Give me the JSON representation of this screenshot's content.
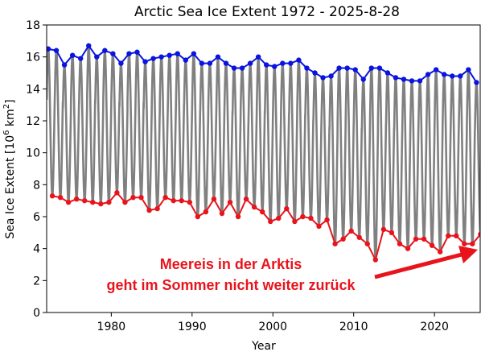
{
  "chart_data": {
    "type": "line",
    "title": "Arctic Sea Ice Extent 1972 - 2025-8-28",
    "xlabel": "Year",
    "ylabel_main": "Sea Ice Extent [10",
    "ylabel_sup1": "6",
    "ylabel_mid": " km",
    "ylabel_sup2": "2",
    "ylabel_end": "]",
    "xlim": [
      1972,
      2025.66
    ],
    "ylim": [
      0,
      18
    ],
    "xticks": [
      1980,
      1990,
      2000,
      2010,
      2020
    ],
    "yticks": [
      0,
      2,
      4,
      6,
      8,
      10,
      12,
      14,
      16,
      18
    ],
    "grid": false,
    "annotation": {
      "text_line1": "Meereis in der Arktis",
      "text_line2": "geht im Sommer nicht weiter zurück",
      "color": "#e8141c"
    },
    "colors": {
      "daily": "#808080",
      "max": "#0a14e0",
      "min": "#e8141c"
    },
    "series": [
      {
        "role": "annual-maximum",
        "x": [
          1972,
          1973,
          1974,
          1975,
          1976,
          1977,
          1978,
          1979,
          1980,
          1981,
          1982,
          1983,
          1984,
          1985,
          1986,
          1987,
          1988,
          1989,
          1990,
          1991,
          1992,
          1993,
          1994,
          1995,
          1996,
          1997,
          1998,
          1999,
          2000,
          2001,
          2002,
          2003,
          2004,
          2005,
          2006,
          2007,
          2008,
          2009,
          2010,
          2011,
          2012,
          2013,
          2014,
          2015,
          2016,
          2017,
          2018,
          2019,
          2020,
          2021,
          2022,
          2023,
          2024,
          2025
        ],
        "values": [
          16.5,
          16.4,
          15.5,
          16.1,
          15.9,
          16.7,
          16.0,
          16.4,
          16.2,
          15.6,
          16.2,
          16.3,
          15.7,
          15.9,
          16.0,
          16.1,
          16.2,
          15.8,
          16.2,
          15.6,
          15.6,
          16.0,
          15.6,
          15.3,
          15.3,
          15.6,
          16.0,
          15.5,
          15.4,
          15.6,
          15.6,
          15.8,
          15.3,
          15.0,
          14.7,
          14.8,
          15.3,
          15.3,
          15.2,
          14.6,
          15.3,
          15.3,
          15.0,
          14.7,
          14.6,
          14.5,
          14.5,
          14.9,
          15.2,
          14.9,
          14.8,
          14.8,
          15.2,
          14.4
        ]
      },
      {
        "role": "annual-minimum",
        "x": [
          1972,
          1973,
          1974,
          1975,
          1976,
          1977,
          1978,
          1979,
          1980,
          1981,
          1982,
          1983,
          1984,
          1985,
          1986,
          1987,
          1988,
          1989,
          1990,
          1991,
          1992,
          1993,
          1994,
          1995,
          1996,
          1997,
          1998,
          1999,
          2000,
          2001,
          2002,
          2003,
          2004,
          2005,
          2006,
          2007,
          2008,
          2009,
          2010,
          2011,
          2012,
          2013,
          2014,
          2015,
          2016,
          2017,
          2018,
          2019,
          2020,
          2021,
          2022,
          2023,
          2024,
          2025
        ],
        "values": [
          7.3,
          7.2,
          6.9,
          7.1,
          7.0,
          6.9,
          6.8,
          6.9,
          7.5,
          6.9,
          7.2,
          7.2,
          6.4,
          6.5,
          7.2,
          7.0,
          7.0,
          6.9,
          6.0,
          6.3,
          7.1,
          6.2,
          6.9,
          6.0,
          7.1,
          6.6,
          6.3,
          5.7,
          5.9,
          6.5,
          5.7,
          6.0,
          5.9,
          5.4,
          5.8,
          4.3,
          4.6,
          5.1,
          4.7,
          4.3,
          3.3,
          5.2,
          5.0,
          4.3,
          4.0,
          4.6,
          4.6,
          4.2,
          3.8,
          4.8,
          4.8,
          4.3,
          4.3,
          4.9
        ]
      }
    ]
  }
}
